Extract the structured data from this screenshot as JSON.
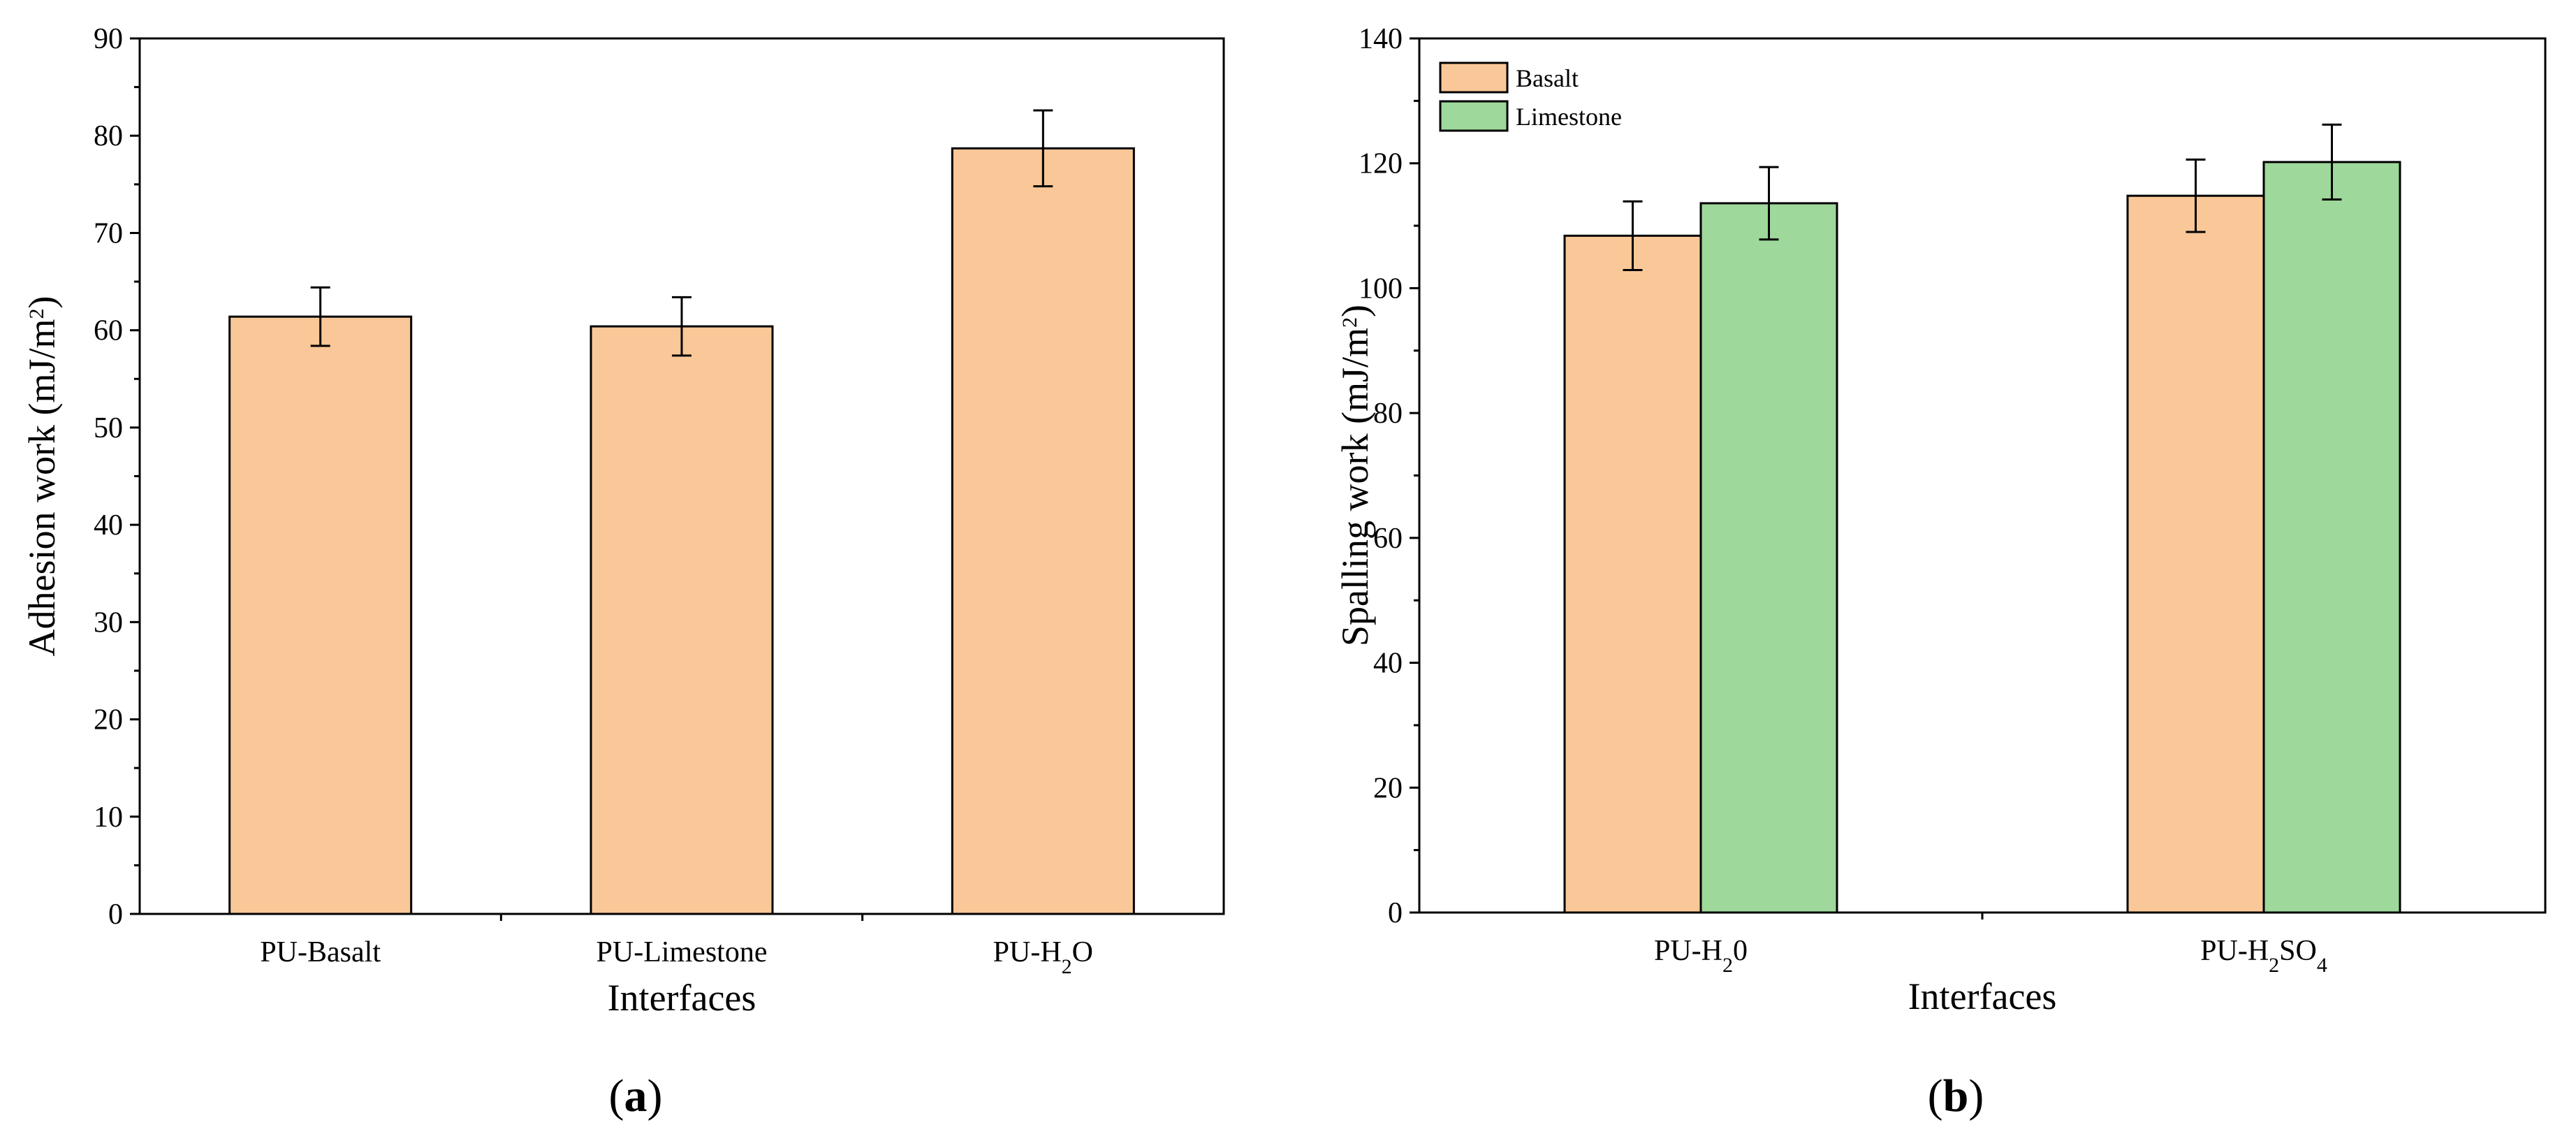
{
  "chart_data": [
    {
      "type": "bar",
      "panel_label": "a",
      "categories": [
        {
          "prefix": "PU-Basalt",
          "sub": "",
          "suffix": ""
        },
        {
          "prefix": "PU-Limestone",
          "sub": "",
          "suffix": ""
        },
        {
          "prefix": "PU-H",
          "sub": "2",
          "suffix": "O"
        }
      ],
      "series": [
        {
          "name": "",
          "color": "#fac898",
          "values": [
            61.4,
            60.4,
            78.7
          ],
          "errors": [
            3.0,
            3.0,
            3.9
          ]
        }
      ],
      "xlabel": "Interfaces",
      "ylabel": {
        "main": "Adhesion work (mJ/m",
        "sup": "2",
        "close": ")"
      },
      "ylim": [
        0,
        90
      ],
      "yticks": [
        0,
        10,
        20,
        30,
        40,
        50,
        60,
        70,
        80,
        90
      ],
      "legend": false,
      "grid": false
    },
    {
      "type": "bar",
      "panel_label": "b",
      "categories": [
        {
          "prefix": "PU-H",
          "sub": "2",
          "suffix": "0"
        },
        {
          "prefix": "PU-H",
          "sub": "2",
          "suffix": "SO",
          "sub2": "4"
        }
      ],
      "series": [
        {
          "name": "Basalt",
          "color": "#fac898",
          "values": [
            108.4,
            114.8
          ],
          "errors": [
            5.5,
            5.8
          ]
        },
        {
          "name": "Limestone",
          "color": "#9ed89b",
          "values": [
            113.6,
            120.2
          ],
          "errors": [
            5.8,
            6.0
          ]
        }
      ],
      "xlabel": "Interfaces",
      "ylabel": {
        "main": "Spalling work (mJ/m",
        "sup": "2",
        "close": ")"
      },
      "ylim": [
        0,
        140
      ],
      "yticks": [
        0,
        20,
        40,
        60,
        80,
        100,
        120,
        140
      ],
      "legend": true,
      "legend_position": "top-left",
      "grid": false
    }
  ]
}
